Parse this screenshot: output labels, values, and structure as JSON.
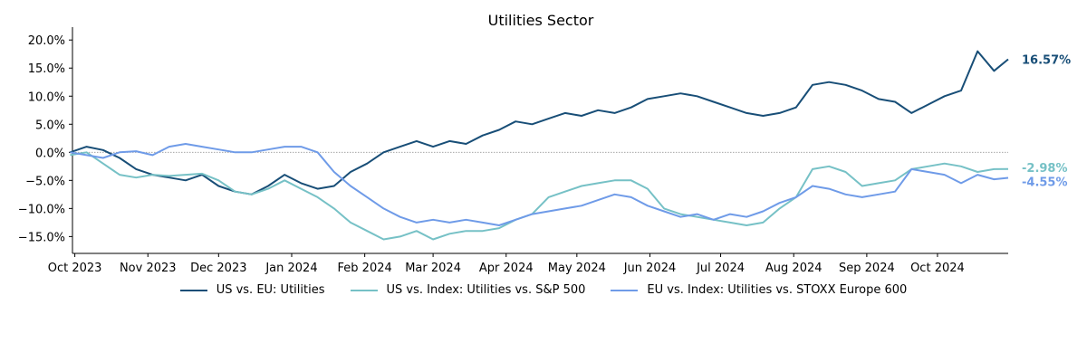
{
  "chart_data": {
    "type": "line",
    "title": "Utilities Sector",
    "xlabel": "",
    "ylabel": "",
    "x_range": [
      "2023-09-30",
      "2024-10-31"
    ],
    "ylim": [
      -18,
      21
    ],
    "y_ticks": [
      -15,
      -10,
      -5,
      0,
      5,
      10,
      15,
      20
    ],
    "y_tick_labels": [
      "−15.0%",
      "−10.0%",
      "−5.0%",
      "0.0%",
      "5.0%",
      "10.0%",
      "15.0%",
      "20.0%"
    ],
    "x_ticks": [
      "2023-10-01",
      "2023-11-01",
      "2023-12-01",
      "2024-01-01",
      "2024-02-01",
      "2024-03-01",
      "2024-04-01",
      "2024-05-01",
      "2024-06-01",
      "2024-07-01",
      "2024-08-01",
      "2024-09-01",
      "2024-10-01"
    ],
    "x_tick_labels": [
      "Oct 2023",
      "Nov 2023",
      "Dec 2023",
      "Jan 2024",
      "Feb 2024",
      "Mar 2024",
      "Apr 2024",
      "May 2024",
      "Jun 2024",
      "Jul 2024",
      "Aug 2024",
      "Sep 2024",
      "Oct 2024"
    ],
    "zero_line": true,
    "grid": false,
    "legend_position": "bottom-center",
    "series": [
      {
        "name": "US vs. EU: Utilities",
        "color": "#184e77",
        "end_label": "16.57%",
        "points": [
          [
            "2023-09-29",
            0.0
          ],
          [
            "2023-10-06",
            1.0
          ],
          [
            "2023-10-13",
            0.4
          ],
          [
            "2023-10-20",
            -1.0
          ],
          [
            "2023-10-27",
            -3.0
          ],
          [
            "2023-11-03",
            -4.0
          ],
          [
            "2023-11-10",
            -4.5
          ],
          [
            "2023-11-17",
            -5.0
          ],
          [
            "2023-11-24",
            -4.0
          ],
          [
            "2023-12-01",
            -6.0
          ],
          [
            "2023-12-08",
            -7.0
          ],
          [
            "2023-12-15",
            -7.5
          ],
          [
            "2023-12-22",
            -6.0
          ],
          [
            "2023-12-29",
            -4.0
          ],
          [
            "2024-01-05",
            -5.5
          ],
          [
            "2024-01-12",
            -6.5
          ],
          [
            "2024-01-19",
            -6.0
          ],
          [
            "2024-01-26",
            -3.5
          ],
          [
            "2024-02-02",
            -2.0
          ],
          [
            "2024-02-09",
            0.0
          ],
          [
            "2024-02-16",
            1.0
          ],
          [
            "2024-02-23",
            2.0
          ],
          [
            "2024-03-01",
            1.0
          ],
          [
            "2024-03-08",
            2.0
          ],
          [
            "2024-03-15",
            1.5
          ],
          [
            "2024-03-22",
            3.0
          ],
          [
            "2024-03-29",
            4.0
          ],
          [
            "2024-04-05",
            5.5
          ],
          [
            "2024-04-12",
            5.0
          ],
          [
            "2024-04-19",
            6.0
          ],
          [
            "2024-04-26",
            7.0
          ],
          [
            "2024-05-03",
            6.5
          ],
          [
            "2024-05-10",
            7.5
          ],
          [
            "2024-05-17",
            7.0
          ],
          [
            "2024-05-24",
            8.0
          ],
          [
            "2024-05-31",
            9.5
          ],
          [
            "2024-06-07",
            10.0
          ],
          [
            "2024-06-14",
            10.5
          ],
          [
            "2024-06-21",
            10.0
          ],
          [
            "2024-06-28",
            9.0
          ],
          [
            "2024-07-05",
            8.0
          ],
          [
            "2024-07-12",
            7.0
          ],
          [
            "2024-07-19",
            6.5
          ],
          [
            "2024-07-26",
            7.0
          ],
          [
            "2024-08-02",
            8.0
          ],
          [
            "2024-08-09",
            12.0
          ],
          [
            "2024-08-16",
            12.5
          ],
          [
            "2024-08-23",
            12.0
          ],
          [
            "2024-08-30",
            11.0
          ],
          [
            "2024-09-06",
            9.5
          ],
          [
            "2024-09-13",
            9.0
          ],
          [
            "2024-09-20",
            7.0
          ],
          [
            "2024-09-27",
            8.5
          ],
          [
            "2024-10-04",
            10.0
          ],
          [
            "2024-10-11",
            11.0
          ],
          [
            "2024-10-18",
            18.0
          ],
          [
            "2024-10-25",
            14.5
          ],
          [
            "2024-10-31",
            16.57
          ]
        ]
      },
      {
        "name": "US vs. Index: Utilities vs. S&P 500",
        "color": "#76c1c6",
        "end_label": "-2.98%",
        "points": [
          [
            "2023-09-29",
            -0.5
          ],
          [
            "2023-10-06",
            0.0
          ],
          [
            "2023-10-13",
            -2.0
          ],
          [
            "2023-10-20",
            -4.0
          ],
          [
            "2023-10-27",
            -4.5
          ],
          [
            "2023-11-03",
            -4.0
          ],
          [
            "2023-11-10",
            -4.2
          ],
          [
            "2023-11-17",
            -4.0
          ],
          [
            "2023-11-24",
            -3.8
          ],
          [
            "2023-12-01",
            -5.0
          ],
          [
            "2023-12-08",
            -7.0
          ],
          [
            "2023-12-15",
            -7.5
          ],
          [
            "2023-12-22",
            -6.5
          ],
          [
            "2023-12-29",
            -5.0
          ],
          [
            "2024-01-05",
            -6.5
          ],
          [
            "2024-01-12",
            -8.0
          ],
          [
            "2024-01-19",
            -10.0
          ],
          [
            "2024-01-26",
            -12.5
          ],
          [
            "2024-02-02",
            -14.0
          ],
          [
            "2024-02-09",
            -15.5
          ],
          [
            "2024-02-16",
            -15.0
          ],
          [
            "2024-02-23",
            -14.0
          ],
          [
            "2024-03-01",
            -15.5
          ],
          [
            "2024-03-08",
            -14.5
          ],
          [
            "2024-03-15",
            -14.0
          ],
          [
            "2024-03-22",
            -14.0
          ],
          [
            "2024-03-29",
            -13.5
          ],
          [
            "2024-04-05",
            -12.0
          ],
          [
            "2024-04-12",
            -11.0
          ],
          [
            "2024-04-19",
            -8.0
          ],
          [
            "2024-04-26",
            -7.0
          ],
          [
            "2024-05-03",
            -6.0
          ],
          [
            "2024-05-10",
            -5.5
          ],
          [
            "2024-05-17",
            -5.0
          ],
          [
            "2024-05-24",
            -5.0
          ],
          [
            "2024-05-31",
            -6.5
          ],
          [
            "2024-06-07",
            -10.0
          ],
          [
            "2024-06-14",
            -11.0
          ],
          [
            "2024-06-21",
            -11.5
          ],
          [
            "2024-06-28",
            -12.0
          ],
          [
            "2024-07-05",
            -12.5
          ],
          [
            "2024-07-12",
            -13.0
          ],
          [
            "2024-07-19",
            -12.5
          ],
          [
            "2024-07-26",
            -10.0
          ],
          [
            "2024-08-02",
            -8.0
          ],
          [
            "2024-08-09",
            -3.0
          ],
          [
            "2024-08-16",
            -2.5
          ],
          [
            "2024-08-23",
            -3.5
          ],
          [
            "2024-08-30",
            -6.0
          ],
          [
            "2024-09-06",
            -5.5
          ],
          [
            "2024-09-13",
            -5.0
          ],
          [
            "2024-09-20",
            -3.0
          ],
          [
            "2024-09-27",
            -2.5
          ],
          [
            "2024-10-04",
            -2.0
          ],
          [
            "2024-10-11",
            -2.5
          ],
          [
            "2024-10-18",
            -3.5
          ],
          [
            "2024-10-25",
            -3.0
          ],
          [
            "2024-10-31",
            -2.98
          ]
        ]
      },
      {
        "name": "EU vs. Index: Utilities vs. STOXX Europe 600",
        "color": "#6f9be8",
        "end_label": "-4.55%",
        "points": [
          [
            "2023-09-29",
            0.0
          ],
          [
            "2023-10-06",
            -0.5
          ],
          [
            "2023-10-13",
            -1.0
          ],
          [
            "2023-10-20",
            0.0
          ],
          [
            "2023-10-27",
            0.2
          ],
          [
            "2023-11-03",
            -0.5
          ],
          [
            "2023-11-10",
            1.0
          ],
          [
            "2023-11-17",
            1.5
          ],
          [
            "2023-11-24",
            1.0
          ],
          [
            "2023-12-01",
            0.5
          ],
          [
            "2023-12-08",
            0.0
          ],
          [
            "2023-12-15",
            0.0
          ],
          [
            "2023-12-22",
            0.5
          ],
          [
            "2023-12-29",
            1.0
          ],
          [
            "2024-01-05",
            1.0
          ],
          [
            "2024-01-12",
            0.0
          ],
          [
            "2024-01-19",
            -3.5
          ],
          [
            "2024-01-26",
            -6.0
          ],
          [
            "2024-02-02",
            -8.0
          ],
          [
            "2024-02-09",
            -10.0
          ],
          [
            "2024-02-16",
            -11.5
          ],
          [
            "2024-02-23",
            -12.5
          ],
          [
            "2024-03-01",
            -12.0
          ],
          [
            "2024-03-08",
            -12.5
          ],
          [
            "2024-03-15",
            -12.0
          ],
          [
            "2024-03-22",
            -12.5
          ],
          [
            "2024-03-29",
            -13.0
          ],
          [
            "2024-04-05",
            -12.0
          ],
          [
            "2024-04-12",
            -11.0
          ],
          [
            "2024-04-19",
            -10.5
          ],
          [
            "2024-04-26",
            -10.0
          ],
          [
            "2024-05-03",
            -9.5
          ],
          [
            "2024-05-10",
            -8.5
          ],
          [
            "2024-05-17",
            -7.5
          ],
          [
            "2024-05-24",
            -8.0
          ],
          [
            "2024-05-31",
            -9.5
          ],
          [
            "2024-06-07",
            -10.5
          ],
          [
            "2024-06-14",
            -11.5
          ],
          [
            "2024-06-21",
            -11.0
          ],
          [
            "2024-06-28",
            -12.0
          ],
          [
            "2024-07-05",
            -11.0
          ],
          [
            "2024-07-12",
            -11.5
          ],
          [
            "2024-07-19",
            -10.5
          ],
          [
            "2024-07-26",
            -9.0
          ],
          [
            "2024-08-02",
            -8.0
          ],
          [
            "2024-08-09",
            -6.0
          ],
          [
            "2024-08-16",
            -6.5
          ],
          [
            "2024-08-23",
            -7.5
          ],
          [
            "2024-08-30",
            -8.0
          ],
          [
            "2024-09-06",
            -7.5
          ],
          [
            "2024-09-13",
            -7.0
          ],
          [
            "2024-09-20",
            -3.0
          ],
          [
            "2024-09-27",
            -3.5
          ],
          [
            "2024-10-04",
            -4.0
          ],
          [
            "2024-10-11",
            -5.5
          ],
          [
            "2024-10-18",
            -4.0
          ],
          [
            "2024-10-25",
            -4.8
          ],
          [
            "2024-10-31",
            -4.55
          ]
        ]
      }
    ]
  }
}
